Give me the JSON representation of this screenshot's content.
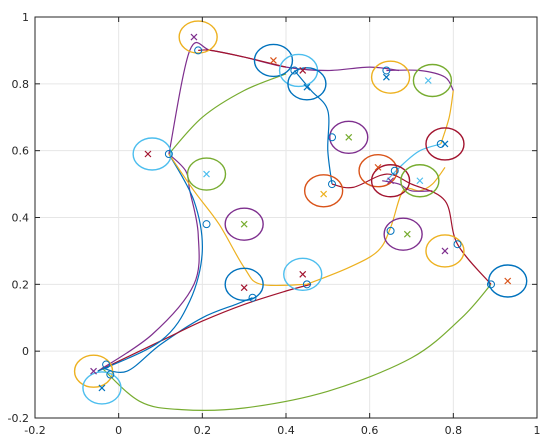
{
  "chart_data": {
    "type": "line",
    "title": "",
    "xlabel": "",
    "ylabel": "",
    "xlim": [
      -0.2,
      1.0
    ],
    "ylim": [
      -0.2,
      1.0
    ],
    "xticks": [
      "-0.2",
      "0",
      "0.2",
      "0.4",
      "0.6",
      "0.8",
      "1"
    ],
    "yticks": [
      "-0.2",
      "0",
      "0.2",
      "0.4",
      "0.6",
      "0.8",
      "1"
    ],
    "grid": true,
    "legend": "none",
    "colors": {
      "blue": "#0072BD",
      "orange": "#D95319",
      "yellow": "#EDB120",
      "purple": "#7E2F8E",
      "green": "#77AC30",
      "cyan": "#4DBEEE",
      "red": "#A2142F"
    },
    "series": [
      {
        "color": "#0072BD",
        "x": [
          -0.04,
          0.02,
          0.1,
          0.2,
          0.28,
          0.32
        ],
        "y": [
          -0.05,
          -0.06,
          0.02,
          0.1,
          0.14,
          0.16
        ]
      },
      {
        "color": "#77AC30",
        "x": [
          -0.04,
          0.05,
          0.15,
          0.3,
          0.5,
          0.7,
          0.82,
          0.89
        ],
        "y": [
          -0.05,
          -0.15,
          -0.175,
          -0.17,
          -0.12,
          -0.02,
          0.1,
          0.2
        ]
      },
      {
        "color": "#7E2F8E",
        "x": [
          -0.05,
          0.08,
          0.18,
          0.19,
          0.17,
          0.16,
          0.12
        ],
        "y": [
          -0.06,
          0.05,
          0.2,
          0.35,
          0.48,
          0.54,
          0.59
        ]
      },
      {
        "color": "#A2142F",
        "x": [
          -0.05,
          0.1,
          0.2,
          0.3,
          0.4,
          0.46
        ],
        "y": [
          -0.06,
          0.03,
          0.09,
          0.14,
          0.18,
          0.2
        ]
      },
      {
        "color": "#0072BD",
        "x": [
          -0.05,
          0.1,
          0.17,
          0.2,
          0.18,
          0.12
        ],
        "y": [
          -0.06,
          0.03,
          0.15,
          0.3,
          0.45,
          0.59
        ]
      },
      {
        "color": "#77AC30",
        "x": [
          0.12,
          0.2,
          0.3,
          0.4
        ],
        "y": [
          0.59,
          0.7,
          0.78,
          0.83
        ]
      },
      {
        "color": "#EDB120",
        "x": [
          0.12,
          0.18,
          0.24,
          0.3,
          0.34,
          0.45
        ],
        "y": [
          0.59,
          0.48,
          0.38,
          0.25,
          0.2,
          0.2
        ]
      },
      {
        "color": "#7E2F8E",
        "x": [
          0.12,
          0.17,
          0.22,
          0.3,
          0.4,
          0.5,
          0.6,
          0.67
        ],
        "y": [
          0.59,
          0.9,
          0.9,
          0.88,
          0.85,
          0.84,
          0.85,
          0.84
        ]
      },
      {
        "color": "#A2142F",
        "x": [
          0.19,
          0.22,
          0.3,
          0.4
        ],
        "y": [
          0.9,
          0.9,
          0.88,
          0.85
        ]
      },
      {
        "color": "#0072BD",
        "x": [
          0.42,
          0.46,
          0.5,
          0.5,
          0.51
        ],
        "y": [
          0.84,
          0.78,
          0.72,
          0.6,
          0.5
        ]
      },
      {
        "color": "#EDB120",
        "x": [
          0.45,
          0.55,
          0.62,
          0.65,
          0.68,
          0.72,
          0.75,
          0.78
        ],
        "y": [
          0.2,
          0.25,
          0.3,
          0.37,
          0.48,
          0.48,
          0.5,
          0.55
        ]
      },
      {
        "color": "#7E2F8E",
        "x": [
          0.63,
          0.67,
          0.7,
          0.75
        ],
        "y": [
          0.51,
          0.5,
          0.48,
          0.48
        ]
      },
      {
        "color": "#A2142F",
        "x": [
          0.51,
          0.56,
          0.64,
          0.7,
          0.78,
          0.81,
          0.89
        ],
        "y": [
          0.5,
          0.49,
          0.53,
          0.5,
          0.45,
          0.32,
          0.2
        ]
      },
      {
        "color": "#4DBEEE",
        "x": [
          0.64,
          0.68,
          0.72,
          0.77
        ],
        "y": [
          0.51,
          0.56,
          0.6,
          0.62
        ]
      },
      {
        "color": "#EDB120",
        "x": [
          0.77,
          0.79,
          0.8
        ],
        "y": [
          0.62,
          0.7,
          0.78
        ]
      },
      {
        "color": "#7E2F8E",
        "x": [
          0.64,
          0.72,
          0.78,
          0.8
        ],
        "y": [
          0.84,
          0.84,
          0.82,
          0.78
        ]
      }
    ],
    "waypoints": [
      {
        "x": -0.03,
        "y": -0.04
      },
      {
        "x": -0.02,
        "y": -0.07
      },
      {
        "x": 0.12,
        "y": 0.59
      },
      {
        "x": 0.19,
        "y": 0.9
      },
      {
        "x": 0.21,
        "y": 0.38
      },
      {
        "x": 0.32,
        "y": 0.16
      },
      {
        "x": 0.42,
        "y": 0.84
      },
      {
        "x": 0.45,
        "y": 0.2
      },
      {
        "x": 0.51,
        "y": 0.64
      },
      {
        "x": 0.51,
        "y": 0.5
      },
      {
        "x": 0.64,
        "y": 0.84
      },
      {
        "x": 0.65,
        "y": 0.36
      },
      {
        "x": 0.66,
        "y": 0.54
      },
      {
        "x": 0.77,
        "y": 0.62
      },
      {
        "x": 0.81,
        "y": 0.32
      },
      {
        "x": 0.89,
        "y": 0.2
      }
    ],
    "targets": [
      {
        "x": 0.18,
        "y": 0.94,
        "color": "#7E2F8E"
      },
      {
        "x": 0.37,
        "y": 0.87,
        "color": "#D95319"
      },
      {
        "x": 0.44,
        "y": 0.84,
        "color": "#A2142F"
      },
      {
        "x": 0.45,
        "y": 0.79,
        "color": "#0072BD"
      },
      {
        "x": 0.64,
        "y": 0.82,
        "color": "#0072BD"
      },
      {
        "x": 0.74,
        "y": 0.81,
        "color": "#4DBEEE"
      },
      {
        "x": 0.07,
        "y": 0.59,
        "color": "#A2142F"
      },
      {
        "x": 0.21,
        "y": 0.53,
        "color": "#4DBEEE"
      },
      {
        "x": 0.55,
        "y": 0.64,
        "color": "#77AC30"
      },
      {
        "x": 0.78,
        "y": 0.62,
        "color": "#0072BD"
      },
      {
        "x": 0.49,
        "y": 0.47,
        "color": "#EDB120"
      },
      {
        "x": 0.62,
        "y": 0.55,
        "color": "#D95319"
      },
      {
        "x": 0.65,
        "y": 0.51,
        "color": "#7E2F8E"
      },
      {
        "x": 0.72,
        "y": 0.51,
        "color": "#4DBEEE"
      },
      {
        "x": 0.3,
        "y": 0.38,
        "color": "#77AC30"
      },
      {
        "x": 0.69,
        "y": 0.35,
        "color": "#77AC30"
      },
      {
        "x": 0.78,
        "y": 0.3,
        "color": "#7E2F8E"
      },
      {
        "x": 0.44,
        "y": 0.23,
        "color": "#A2142F"
      },
      {
        "x": 0.3,
        "y": 0.19,
        "color": "#A2142F"
      },
      {
        "x": 0.93,
        "y": 0.21,
        "color": "#D95319"
      },
      {
        "x": -0.06,
        "y": -0.06,
        "color": "#7E2F8E"
      },
      {
        "x": -0.04,
        "y": -0.11,
        "color": "#0072BD"
      }
    ],
    "regions": [
      {
        "x": 0.19,
        "y": 0.94,
        "color": "#EDB120"
      },
      {
        "x": 0.37,
        "y": 0.87,
        "color": "#0072BD"
      },
      {
        "x": 0.43,
        "y": 0.84,
        "color": "#4DBEEE"
      },
      {
        "x": 0.45,
        "y": 0.8,
        "color": "#0072BD"
      },
      {
        "x": 0.65,
        "y": 0.82,
        "color": "#EDB120"
      },
      {
        "x": 0.75,
        "y": 0.81,
        "color": "#77AC30"
      },
      {
        "x": 0.08,
        "y": 0.59,
        "color": "#4DBEEE"
      },
      {
        "x": 0.21,
        "y": 0.53,
        "color": "#77AC30"
      },
      {
        "x": 0.55,
        "y": 0.64,
        "color": "#7E2F8E"
      },
      {
        "x": 0.78,
        "y": 0.62,
        "color": "#A2142F"
      },
      {
        "x": 0.49,
        "y": 0.48,
        "color": "#D95319"
      },
      {
        "x": 0.62,
        "y": 0.54,
        "color": "#D95319"
      },
      {
        "x": 0.65,
        "y": 0.51,
        "color": "#A2142F"
      },
      {
        "x": 0.72,
        "y": 0.51,
        "color": "#77AC30"
      },
      {
        "x": 0.3,
        "y": 0.38,
        "color": "#7E2F8E"
      },
      {
        "x": 0.68,
        "y": 0.35,
        "color": "#7E2F8E"
      },
      {
        "x": 0.78,
        "y": 0.3,
        "color": "#EDB120"
      },
      {
        "x": 0.44,
        "y": 0.23,
        "color": "#4DBEEE"
      },
      {
        "x": 0.3,
        "y": 0.2,
        "color": "#0072BD"
      },
      {
        "x": 0.93,
        "y": 0.21,
        "color": "#0072BD"
      },
      {
        "x": -0.06,
        "y": -0.06,
        "color": "#EDB120"
      },
      {
        "x": -0.04,
        "y": -0.11,
        "color": "#4DBEEE"
      }
    ]
  }
}
